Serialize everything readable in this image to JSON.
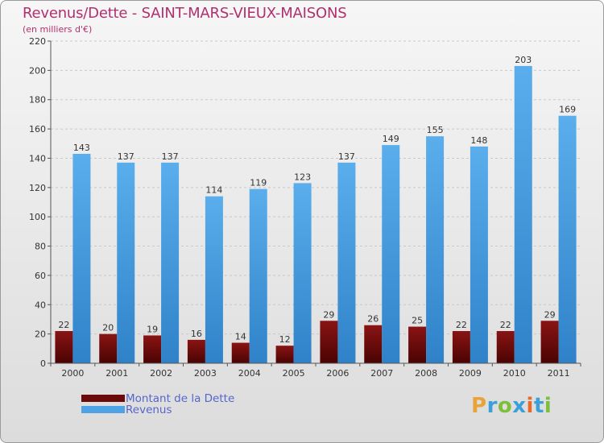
{
  "chart_data": {
    "type": "bar",
    "title": "Revenus/Dette - SAINT-MARS-VIEUX-MAISONS",
    "subtitle": "(en milliers d'€)",
    "categories": [
      "2000",
      "2001",
      "2002",
      "2003",
      "2004",
      "2005",
      "2006",
      "2007",
      "2008",
      "2009",
      "2010",
      "2011"
    ],
    "series": [
      {
        "name": "Montant de la Dette",
        "color": "#6b0a0a",
        "values": [
          22,
          20,
          19,
          16,
          14,
          12,
          29,
          26,
          25,
          22,
          22,
          29
        ]
      },
      {
        "name": "Revenus",
        "color": "#4ea3e6",
        "values": [
          143,
          137,
          137,
          114,
          119,
          123,
          137,
          149,
          155,
          148,
          203,
          169
        ]
      }
    ],
    "ylim": [
      0,
      220
    ],
    "yticks": [
      0,
      20,
      40,
      60,
      80,
      100,
      120,
      140,
      160,
      180,
      200,
      220
    ],
    "grid": true,
    "legend_position": "bottom-left",
    "xlabel": "",
    "ylabel": ""
  },
  "logo": {
    "letters": [
      "P",
      "r",
      "o",
      "x",
      "i",
      "t",
      "i"
    ],
    "colors": [
      "#e8a33a",
      "#3aa0d8",
      "#7bbf3a",
      "#3aa0d8",
      "#e86a2a",
      "#3aa0d8",
      "#7bbf3a"
    ]
  }
}
